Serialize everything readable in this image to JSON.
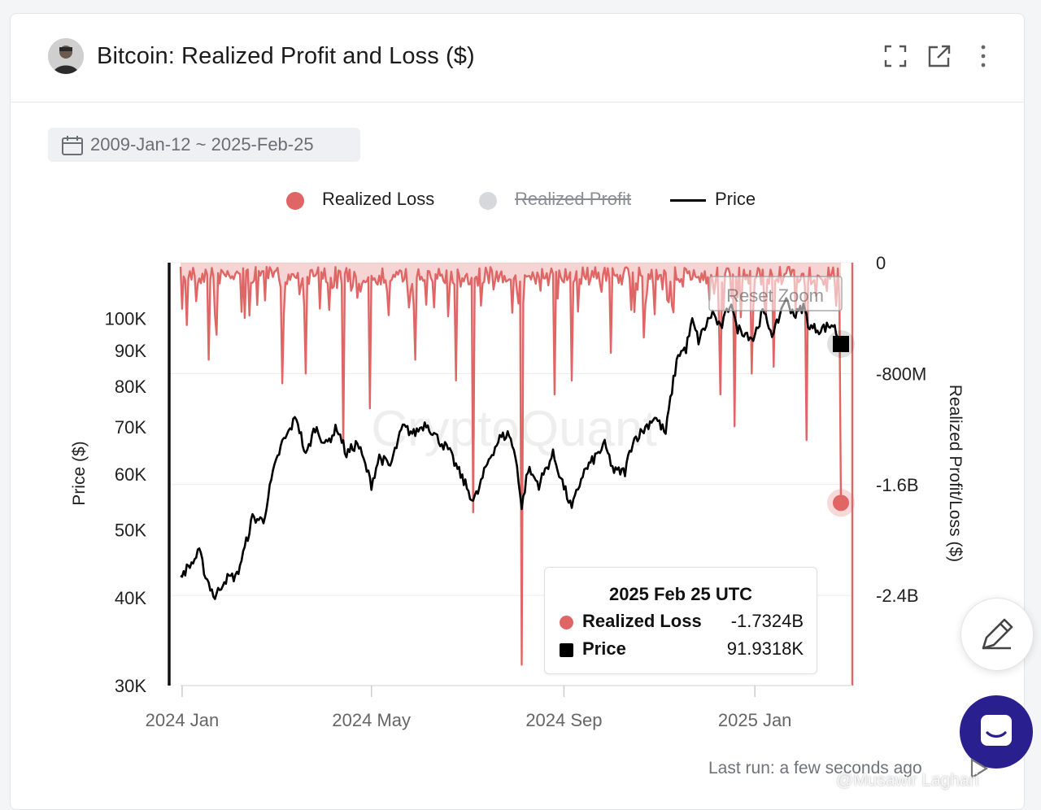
{
  "header": {
    "title": "Bitcoin: Realized Profit and Loss ($)"
  },
  "date_range": "2009-Jan-12 ~ 2025-Feb-25",
  "reset_zoom_label": "Reset Zoom",
  "watermark_center": "CryptoQuant",
  "tooltip": {
    "title": "2025 Feb 25 UTC",
    "rows": [
      {
        "name": "Realized Loss",
        "value": "-1.7324B",
        "color": "#e06666"
      },
      {
        "name": "Price",
        "value": "91.9318K",
        "color": "#000000"
      }
    ]
  },
  "footer": {
    "last_run": "Last run: a few seconds ago"
  },
  "watermark": "@Musawir Laghari",
  "chart_data": {
    "type": "line",
    "legend": [
      {
        "name": "Realized Loss",
        "color": "#e06666",
        "enabled": true
      },
      {
        "name": "Realized Profit",
        "color": "#d6d8dc",
        "enabled": false
      },
      {
        "name": "Price",
        "color": "#000000",
        "enabled": true
      }
    ],
    "legend_position": "top-center",
    "x_ticks": [
      "2024 Jan",
      "2024 May",
      "2024 Sep",
      "2025 Jan"
    ],
    "y_left": {
      "label": "Price ($)",
      "scale": "log",
      "range": [
        30000,
        120000
      ],
      "ticks": [
        "100K",
        "90K",
        "80K",
        "70K",
        "60K",
        "50K",
        "40K",
        "30K"
      ]
    },
    "y_right": {
      "label": "Realized Profit/Loss ($)",
      "range": [
        -3050000000,
        0
      ],
      "ticks": [
        "0",
        "-800M",
        "-1.6B",
        "-2.4B"
      ]
    },
    "price_anchors": [
      [
        "2023-12-31",
        43000
      ],
      [
        "2024-01-08",
        45000
      ],
      [
        "2024-01-12",
        46500
      ],
      [
        "2024-01-16",
        43000
      ],
      [
        "2024-01-22",
        40000
      ],
      [
        "2024-01-28",
        42500
      ],
      [
        "2024-02-05",
        43000
      ],
      [
        "2024-02-10",
        47000
      ],
      [
        "2024-02-15",
        52000
      ],
      [
        "2024-02-22",
        51500
      ],
      [
        "2024-02-28",
        60000
      ],
      [
        "2024-03-05",
        66500
      ],
      [
        "2024-03-08",
        68000
      ],
      [
        "2024-03-14",
        72500
      ],
      [
        "2024-03-20",
        63500
      ],
      [
        "2024-03-26",
        70000
      ],
      [
        "2024-04-02",
        66000
      ],
      [
        "2024-04-09",
        70000
      ],
      [
        "2024-04-15",
        64000
      ],
      [
        "2024-04-22",
        66500
      ],
      [
        "2024-05-01",
        58000
      ],
      [
        "2024-05-06",
        63500
      ],
      [
        "2024-05-13",
        61500
      ],
      [
        "2024-05-21",
        70000
      ],
      [
        "2024-05-28",
        68500
      ],
      [
        "2024-06-05",
        71000
      ],
      [
        "2024-06-12",
        67500
      ],
      [
        "2024-06-19",
        65000
      ],
      [
        "2024-06-25",
        61000
      ],
      [
        "2024-07-05",
        55000
      ],
      [
        "2024-07-08",
        56500
      ],
      [
        "2024-07-15",
        63000
      ],
      [
        "2024-07-22",
        67500
      ],
      [
        "2024-07-28",
        68500
      ],
      [
        "2024-08-02",
        62000
      ],
      [
        "2024-08-05",
        53500
      ],
      [
        "2024-08-09",
        61000
      ],
      [
        "2024-08-16",
        58000
      ],
      [
        "2024-08-25",
        64000
      ],
      [
        "2024-09-01",
        57500
      ],
      [
        "2024-09-06",
        53500
      ],
      [
        "2024-09-13",
        60000
      ],
      [
        "2024-09-20",
        63000
      ],
      [
        "2024-09-27",
        66000
      ],
      [
        "2024-10-03",
        60500
      ],
      [
        "2024-10-10",
        60500
      ],
      [
        "2024-10-15",
        67000
      ],
      [
        "2024-10-21",
        69000
      ],
      [
        "2024-10-29",
        72500
      ],
      [
        "2024-11-05",
        68500
      ],
      [
        "2024-11-08",
        76500
      ],
      [
        "2024-11-13",
        89000
      ],
      [
        "2024-11-18",
        90500
      ],
      [
        "2024-11-22",
        99000
      ],
      [
        "2024-11-26",
        93000
      ],
      [
        "2024-12-05",
        102000
      ],
      [
        "2024-12-10",
        96500
      ],
      [
        "2024-12-17",
        106000
      ],
      [
        "2024-12-20",
        97000
      ],
      [
        "2024-12-26",
        95500
      ],
      [
        "2024-12-31",
        93500
      ],
      [
        "2025-01-06",
        102000
      ],
      [
        "2025-01-13",
        94500
      ],
      [
        "2025-01-20",
        106500
      ],
      [
        "2025-01-27",
        101000
      ],
      [
        "2025-02-01",
        104000
      ],
      [
        "2025-02-05",
        97000
      ],
      [
        "2025-02-12",
        96500
      ],
      [
        "2025-02-20",
        98000
      ],
      [
        "2025-02-25",
        91931.8
      ]
    ],
    "loss_spikes": [
      [
        "2024-01-04",
        -450000000
      ],
      [
        "2024-01-18",
        -700000000
      ],
      [
        "2024-01-23",
        -520000000
      ],
      [
        "2024-03-05",
        -870000000
      ],
      [
        "2024-03-20",
        -800000000
      ],
      [
        "2024-04-13",
        -1300000000
      ],
      [
        "2024-04-30",
        -1050000000
      ],
      [
        "2024-05-29",
        -700000000
      ],
      [
        "2024-06-24",
        -850000000
      ],
      [
        "2024-07-05",
        -1800000000
      ],
      [
        "2024-08-05",
        -2900000000
      ],
      [
        "2024-08-26",
        -950000000
      ],
      [
        "2024-09-06",
        -850000000
      ],
      [
        "2024-10-01",
        -650000000
      ],
      [
        "2024-10-22",
        -540000000
      ],
      [
        "2024-12-10",
        -950000000
      ],
      [
        "2024-12-19",
        -1180000000
      ],
      [
        "2024-12-30",
        -800000000
      ],
      [
        "2025-01-13",
        -750000000
      ],
      [
        "2025-02-03",
        -1280000000
      ],
      [
        "2025-02-25",
        -1732400000
      ]
    ],
    "last_point": {
      "date": "2025-02-25",
      "realized_loss": -1732400000,
      "price": 91931.8
    }
  }
}
